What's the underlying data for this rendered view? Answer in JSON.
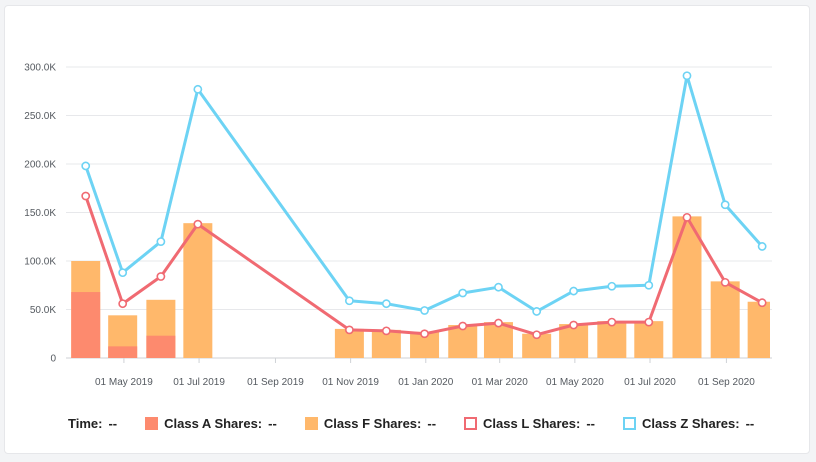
{
  "chart_data": {
    "type": "bar+line",
    "yaxis": {
      "min": 0,
      "max": 300000,
      "step": 50000,
      "tick_labels": [
        "0",
        "50.0K",
        "100.0K",
        "150.0K",
        "200.0K",
        "250.0K",
        "300.0K"
      ]
    },
    "xaxis": {
      "tick_labels": [
        "01 May 2019",
        "01 Jul 2019",
        "01 Sep 2019",
        "01 Nov 2019",
        "01 Jan 2020",
        "01 Mar 2020",
        "01 May 2020",
        "01 Jul 2020",
        "01 Sep 2020"
      ]
    },
    "periods": [
      {
        "date": "2019-03-31",
        "class_a": 68000,
        "class_f": 100000,
        "class_l": 167000,
        "class_z": 198000
      },
      {
        "date": "2019-04-30",
        "class_a": 12000,
        "class_f": 44000,
        "class_l": 56000,
        "class_z": 88000
      },
      {
        "date": "2019-05-31",
        "class_a": 23000,
        "class_f": 60000,
        "class_l": 84000,
        "class_z": 120000
      },
      {
        "date": "2019-06-30",
        "class_a": null,
        "class_f": 139000,
        "class_l": 138000,
        "class_z": 277000
      },
      {
        "date": "2019-10-31",
        "class_a": null,
        "class_f": 30000,
        "class_l": 29000,
        "class_z": 59000
      },
      {
        "date": "2019-11-30",
        "class_a": null,
        "class_f": 29000,
        "class_l": 28000,
        "class_z": 56000
      },
      {
        "date": "2019-12-31",
        "class_a": null,
        "class_f": 27000,
        "class_l": 25000,
        "class_z": 49000
      },
      {
        "date": "2020-01-31",
        "class_a": null,
        "class_f": 34000,
        "class_l": 33000,
        "class_z": 67000
      },
      {
        "date": "2020-02-29",
        "class_a": null,
        "class_f": 37000,
        "class_l": 36000,
        "class_z": 73000
      },
      {
        "date": "2020-03-31",
        "class_a": null,
        "class_f": 25000,
        "class_l": 24000,
        "class_z": 48000
      },
      {
        "date": "2020-04-30",
        "class_a": null,
        "class_f": 35000,
        "class_l": 34000,
        "class_z": 69000
      },
      {
        "date": "2020-05-31",
        "class_a": null,
        "class_f": 38000,
        "class_l": 37000,
        "class_z": 74000
      },
      {
        "date": "2020-06-30",
        "class_a": null,
        "class_f": 38000,
        "class_l": 37000,
        "class_z": 75000
      },
      {
        "date": "2020-07-31",
        "class_a": null,
        "class_f": 146000,
        "class_l": 145000,
        "class_z": 291000
      },
      {
        "date": "2020-08-31",
        "class_a": null,
        "class_f": 79000,
        "class_l": 78000,
        "class_z": 158000
      },
      {
        "date": "2020-09-30",
        "class_a": null,
        "class_f": 58000,
        "class_l": 57000,
        "class_z": 115000
      }
    ],
    "series": [
      {
        "name": "Class A Shares",
        "key": "class_a",
        "kind": "bar",
        "color": "#fd8a6e"
      },
      {
        "name": "Class F Shares",
        "key": "class_f",
        "kind": "bar",
        "color": "#ffb86b"
      },
      {
        "name": "Class L Shares",
        "key": "class_l",
        "kind": "line",
        "color": "#f06a72"
      },
      {
        "name": "Class Z Shares",
        "key": "class_z",
        "kind": "line",
        "color": "#6dd3f4"
      }
    ],
    "legend_position": "bottom"
  },
  "legend": {
    "time_label": "Time:",
    "time_value": "--",
    "items": [
      {
        "label": "Class A Shares:",
        "value": "--",
        "color": "#fd8a6e",
        "style": "filled"
      },
      {
        "label": "Class F Shares:",
        "value": "--",
        "color": "#ffb86b",
        "style": "filled"
      },
      {
        "label": "Class L Shares:",
        "value": "--",
        "color": "#f06a72",
        "style": "outline"
      },
      {
        "label": "Class Z Shares:",
        "value": "--",
        "color": "#6dd3f4",
        "style": "outline"
      }
    ]
  }
}
